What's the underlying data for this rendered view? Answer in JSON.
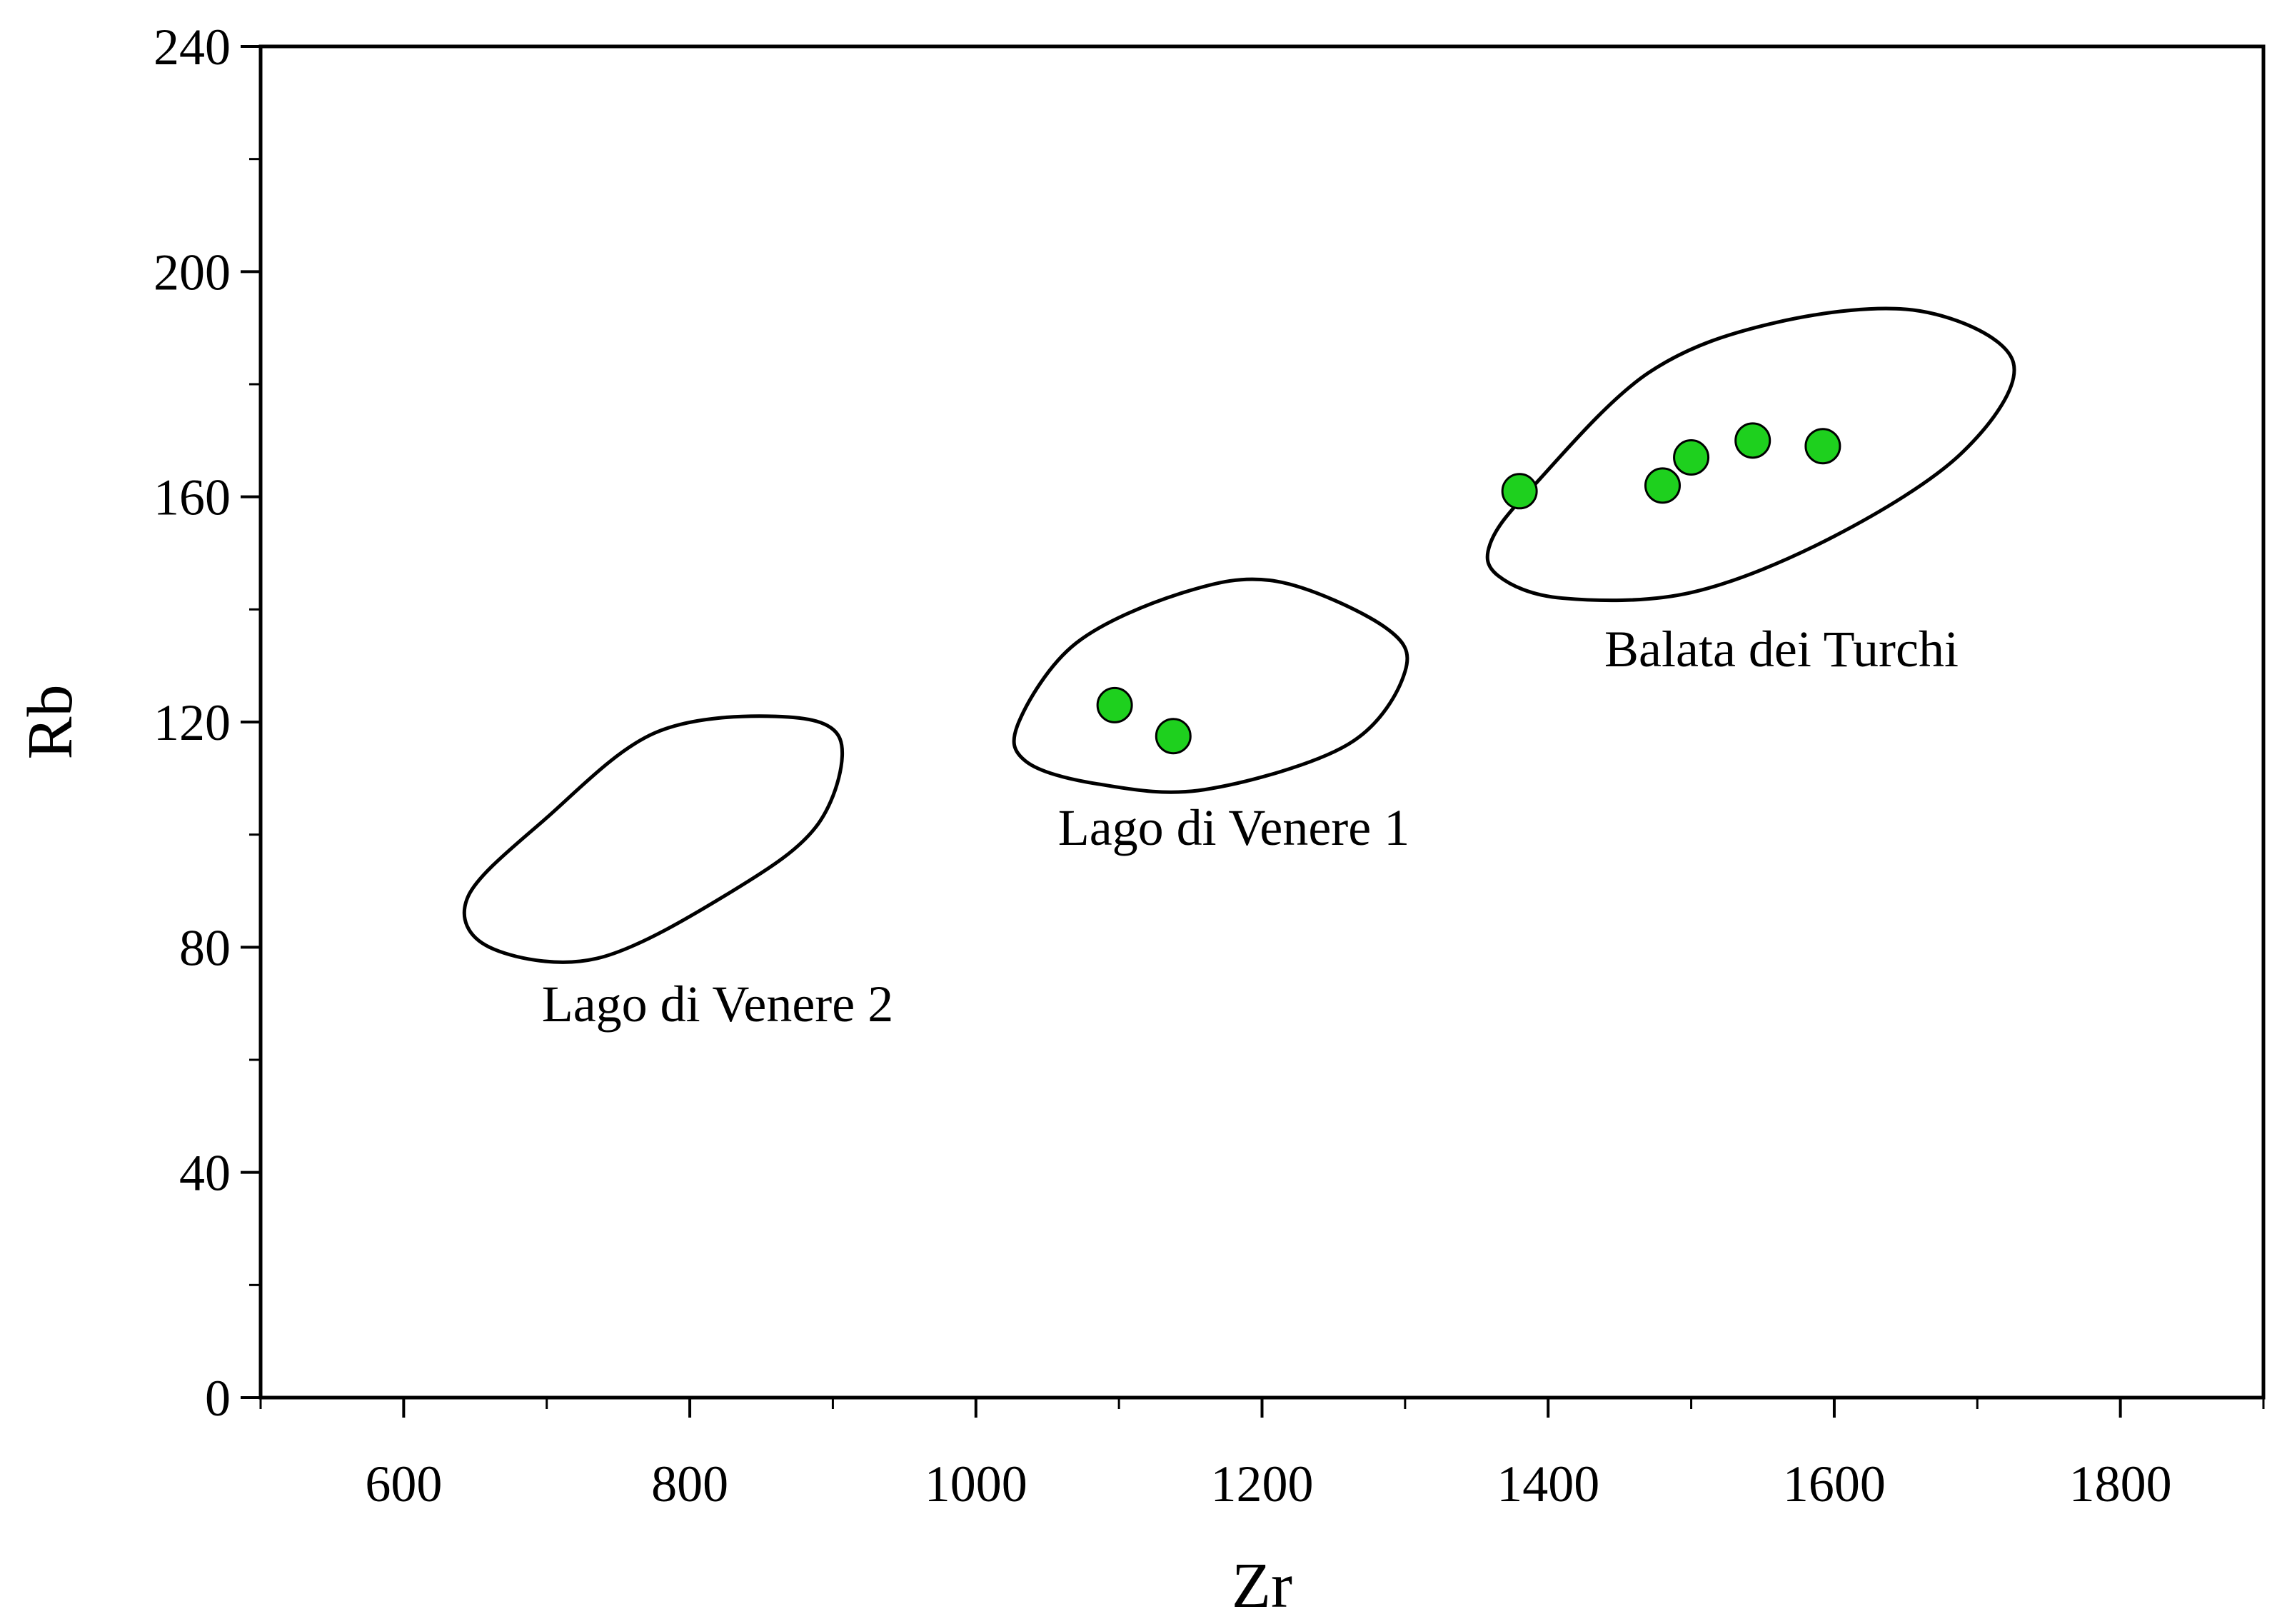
{
  "chart_data": {
    "type": "scatter",
    "xlabel": "Zr",
    "ylabel": "Rb",
    "xlim": [
      500,
      1900
    ],
    "ylim": [
      0,
      240
    ],
    "x_ticks": [
      600,
      800,
      1000,
      1200,
      1400,
      1600,
      1800
    ],
    "y_ticks": [
      0,
      40,
      80,
      120,
      160,
      200,
      240
    ],
    "x_minor_step": 100,
    "y_minor_step": 20,
    "grid": false,
    "marker_color": "#1ed01e",
    "series": [
      {
        "x": [
          1097,
          1138,
          1380,
          1480,
          1500,
          1543,
          1592
        ],
        "y": [
          123,
          117.5,
          161,
          162,
          167,
          170,
          169
        ]
      }
    ],
    "fields": [
      {
        "label": "Lago di Venere 2",
        "center": [
          775,
          99.5
        ],
        "polygon": [
          [
            645,
            89
          ],
          [
            700,
            103
          ],
          [
            775,
            118
          ],
          [
            860,
            121
          ],
          [
            905,
            117
          ],
          [
            890,
            102
          ],
          [
            830,
            90
          ],
          [
            735,
            78
          ],
          [
            660,
            80
          ]
        ]
      },
      {
        "label": "Lago di Venere 1",
        "center": [
          1168,
          126
        ],
        "polygon": [
          [
            1030,
            120
          ],
          [
            1070,
            134
          ],
          [
            1145,
            143
          ],
          [
            1210,
            145
          ],
          [
            1285,
            137
          ],
          [
            1300,
            129
          ],
          [
            1260,
            116
          ],
          [
            1160,
            108
          ],
          [
            1085,
            109
          ],
          [
            1035,
            113
          ]
        ]
      },
      {
        "label": "Balata dei Turchi",
        "center": [
          1515,
          171
        ],
        "polygon": [
          [
            1360,
            152
          ],
          [
            1390,
            162
          ],
          [
            1470,
            182
          ],
          [
            1560,
            191
          ],
          [
            1660,
            193
          ],
          [
            1725,
            184
          ],
          [
            1690,
            168
          ],
          [
            1600,
            153
          ],
          [
            1500,
            143
          ],
          [
            1410,
            142
          ],
          [
            1365,
            146
          ]
        ]
      }
    ]
  }
}
